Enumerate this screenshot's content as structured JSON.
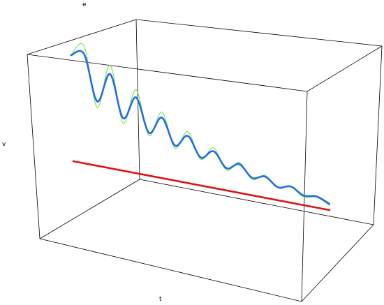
{
  "chart_data": {
    "type": "line",
    "projection": "3d",
    "title": "",
    "axis_labels": {
      "e": "e",
      "v": "v",
      "t": "t"
    },
    "grid": false,
    "legend": "none",
    "series": [
      {
        "color": "#7dde4f",
        "style": "thin",
        "t": [
          0,
          0.5,
          1,
          1.5,
          2,
          2.5,
          3,
          3.5,
          4,
          4.5,
          5,
          5.5,
          6,
          6.5,
          7,
          7.5,
          8,
          8.5,
          9,
          9.5,
          10
        ],
        "v": [
          0.0,
          0.55,
          -0.7,
          0.62,
          -0.55,
          0.5,
          -0.42,
          0.38,
          -0.32,
          0.28,
          -0.24,
          0.21,
          -0.18,
          0.15,
          -0.13,
          0.11,
          -0.09,
          0.08,
          -0.06,
          0.05,
          -0.04
        ],
        "e": [
          1.0,
          0.9,
          0.82,
          0.74,
          0.66,
          0.6,
          0.54,
          0.48,
          0.43,
          0.38,
          0.34,
          0.3,
          0.26,
          0.23,
          0.2,
          0.17,
          0.15,
          0.12,
          0.1,
          0.08,
          0.06
        ]
      },
      {
        "color": "#1f6fe0",
        "style": "thick",
        "t": [
          0,
          0.5,
          1,
          1.5,
          2,
          2.5,
          3,
          3.5,
          4,
          4.5,
          5,
          5.5,
          6,
          6.5,
          7,
          7.5,
          8,
          8.5,
          9,
          9.5,
          10
        ],
        "v": [
          0.0,
          0.4,
          -0.5,
          0.45,
          -0.4,
          0.36,
          -0.3,
          0.27,
          -0.23,
          0.2,
          -0.17,
          0.15,
          -0.13,
          0.11,
          -0.09,
          0.08,
          -0.07,
          0.06,
          -0.05,
          0.04,
          -0.03
        ],
        "e": [
          1.0,
          0.88,
          0.8,
          0.72,
          0.65,
          0.58,
          0.52,
          0.47,
          0.42,
          0.37,
          0.33,
          0.29,
          0.26,
          0.23,
          0.2,
          0.17,
          0.15,
          0.13,
          0.11,
          0.09,
          0.07
        ]
      },
      {
        "color": "#e01010",
        "style": "thick",
        "t": [
          0,
          10
        ],
        "v": [
          0,
          0
        ],
        "e": [
          0,
          0
        ]
      }
    ]
  }
}
